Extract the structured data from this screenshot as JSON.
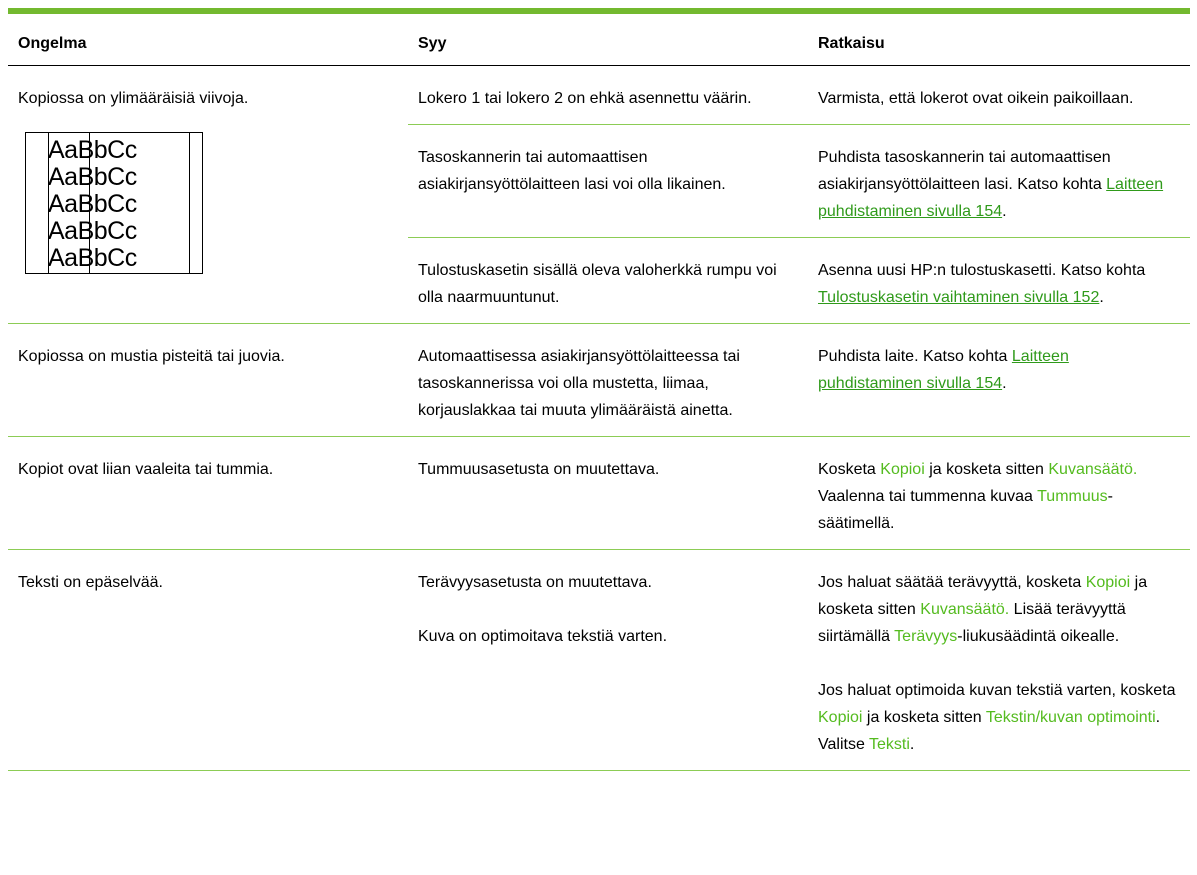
{
  "header": {
    "columns": [
      "Ongelma",
      "Syy",
      "Ratkaisu"
    ]
  },
  "table": {
    "rows": [
      {
        "problem": "Kopiossa on ylimääräisiä viivoja.",
        "illustration_text": "AaBbCc",
        "entries": [
          {
            "cause": [
              [
                {
                  "text": "Lokero 1 tai lokero  2 on ehkä asennettu väärin."
                }
              ]
            ],
            "solution": [
              [
                {
                  "text": "Varmista, että lokerot ovat oikein paikoillaan."
                }
              ]
            ]
          },
          {
            "cause": [
              [
                {
                  "text": "Tasoskannerin tai automaattisen asiakirjansyöttölaitteen lasi voi olla likainen."
                }
              ]
            ],
            "solution": [
              [
                {
                  "text": "Puhdista tasoskannerin tai automaattisen asiakirjansyöttölaitteen lasi. Katso kohta "
                },
                {
                  "text": "Laitteen puhdistaminen sivulla 154",
                  "style": "link"
                },
                {
                  "text": "."
                }
              ]
            ]
          },
          {
            "cause": [
              [
                {
                  "text": "Tulostuskasetin sisällä oleva valoherkkä rumpu voi olla naarmuuntunut."
                }
              ]
            ],
            "solution": [
              [
                {
                  "text": "Asenna uusi HP:n tulostuskasetti. Katso kohta "
                },
                {
                  "text": "Tulostuskasetin vaihtaminen sivulla 152",
                  "style": "link"
                },
                {
                  "text": "."
                }
              ]
            ]
          }
        ]
      },
      {
        "problem": "Kopiossa on mustia pisteitä tai juovia.",
        "entries": [
          {
            "cause": [
              [
                {
                  "text": "Automaattisessa asiakirjansyöttölaitteessa tai tasoskannerissa voi olla mustetta, liimaa, korjauslakkaa tai muuta ylimääräistä ainetta."
                }
              ]
            ],
            "solution": [
              [
                {
                  "text": "Puhdista laite. Katso kohta "
                },
                {
                  "text": "Laitteen puhdistaminen sivulla 154",
                  "style": "link"
                },
                {
                  "text": "."
                }
              ]
            ]
          }
        ]
      },
      {
        "problem": "Kopiot ovat liian vaaleita tai tummia.",
        "entries": [
          {
            "cause": [
              [
                {
                  "text": "Tummuusasetusta on muutettava."
                }
              ]
            ],
            "solution": [
              [
                {
                  "text": "Kosketa "
                },
                {
                  "text": "Kopioi",
                  "style": "ui"
                },
                {
                  "text": " ja kosketa sitten "
                },
                {
                  "text": "Kuvansäätö.",
                  "style": "ui"
                },
                {
                  "text": " Vaalenna tai tummenna kuvaa "
                },
                {
                  "text": "Tummuus",
                  "style": "ui"
                },
                {
                  "text": "-säätimellä."
                }
              ]
            ]
          }
        ]
      },
      {
        "problem": "Teksti on epäselvää.",
        "entries": [
          {
            "cause": [
              [
                {
                  "text": "Terävyysasetusta on muutettava."
                }
              ],
              [
                {
                  "text": "Kuva on optimoitava tekstiä varten."
                }
              ]
            ],
            "solution": [
              [
                {
                  "text": "Jos haluat säätää terävyyttä, kosketa "
                },
                {
                  "text": "Kopioi",
                  "style": "ui"
                },
                {
                  "text": " ja kosketa sitten "
                },
                {
                  "text": "Kuvansäätö.",
                  "style": "ui"
                },
                {
                  "text": " Lisää terävyyttä siirtämällä "
                },
                {
                  "text": "Terävyys",
                  "style": "ui"
                },
                {
                  "text": "-liukusäädintä oikealle."
                }
              ],
              [
                {
                  "text": "Jos haluat optimoida kuvan tekstiä varten, kosketa "
                },
                {
                  "text": "Kopioi",
                  "style": "ui"
                },
                {
                  "text": " ja kosketa sitten "
                },
                {
                  "text": "Tekstin/kuvan optimointi",
                  "style": "ui"
                },
                {
                  "text": ". Valitse "
                },
                {
                  "text": "Teksti",
                  "style": "ui"
                },
                {
                  "text": "."
                }
              ]
            ]
          }
        ]
      }
    ]
  }
}
